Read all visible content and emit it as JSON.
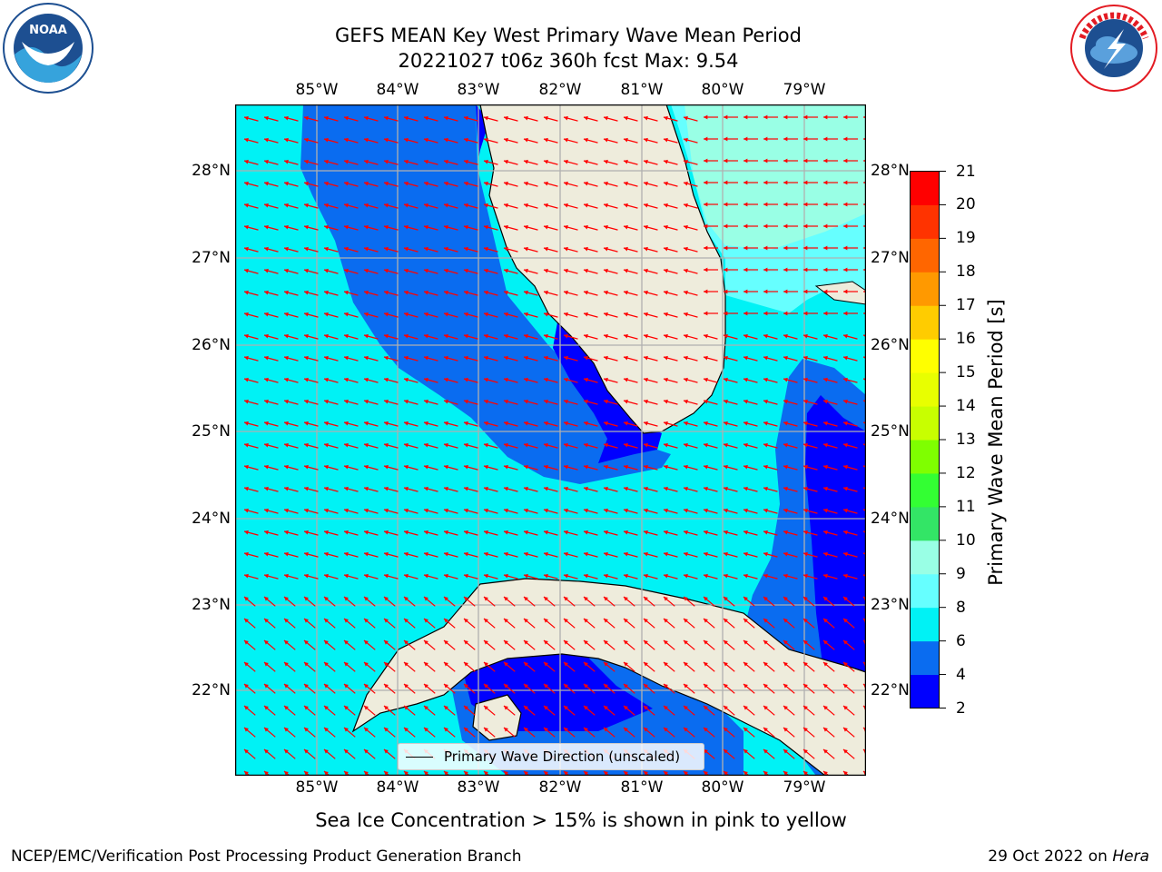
{
  "title": {
    "line1": "GEFS MEAN Key West Primary Wave Mean Period",
    "line2": "20221027 t06z 360h fcst   Max: 9.54"
  },
  "logos": {
    "left": "noaa-logo",
    "right": "nws-logo",
    "left_text": "NOAA",
    "right_text": "NATIONAL WEATHER SERVICE"
  },
  "lon_ticks": [
    "85°W",
    "84°W",
    "83°W",
    "82°W",
    "81°W",
    "80°W",
    "79°W"
  ],
  "lat_ticks": [
    "28°N",
    "27°N",
    "26°N",
    "25°N",
    "24°N",
    "23°N",
    "22°N"
  ],
  "colorbar": {
    "label": "Primary Wave Mean Period [s]",
    "ticks": [
      "21",
      "20",
      "19",
      "18",
      "17",
      "16",
      "15",
      "14",
      "13",
      "12",
      "11",
      "10",
      "9",
      "8",
      "6",
      "4",
      "2"
    ],
    "levels": [
      2,
      4,
      6,
      8,
      9,
      10,
      11,
      12,
      13,
      14,
      15,
      16,
      17,
      18,
      19,
      20,
      21
    ],
    "colors": [
      "#0000ff",
      "#0a6cf0",
      "#00f2f5",
      "#66ffff",
      "#99ffe5",
      "#33e566",
      "#33ff33",
      "#7fff00",
      "#c8ff00",
      "#e8ff00",
      "#ffff00",
      "#ffcc00",
      "#ff9900",
      "#ff6600",
      "#ff3300",
      "#ff0000"
    ]
  },
  "map": {
    "extent": {
      "lon": [
        -86.0,
        -78.3
      ],
      "lat": [
        21.0,
        28.75
      ]
    },
    "land_color": "#eeecdc",
    "arrow_color": "#ff0000",
    "grid_color": "#b0b0b0"
  },
  "legend": {
    "label": "Primary Wave Direction (unscaled)"
  },
  "note": "Sea Ice Concentration > 15% is shown in pink to yellow",
  "footer": {
    "left": "NCEP/EMC/Verification Post Processing Product Generation Branch",
    "right_date": "29 Oct 2022 on ",
    "right_host": "Hera"
  }
}
